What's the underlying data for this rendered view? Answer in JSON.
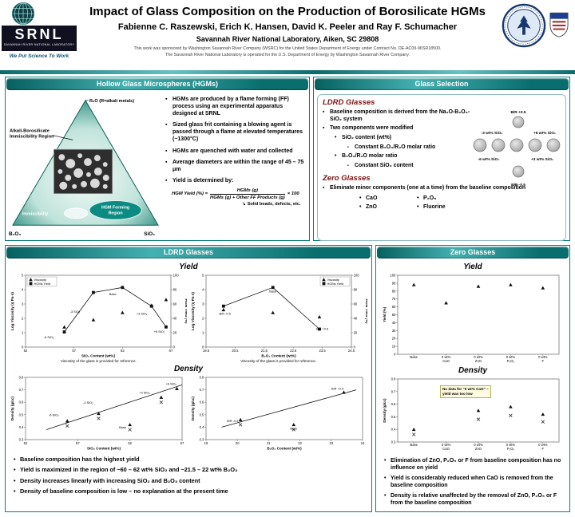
{
  "header": {
    "title": "Impact of Glass Composition on the Production of Borosilicate HGMs",
    "authors": "Fabienne C. Raszewski, Erich K. Hansen, David K. Peeler and Ray F. Schumacher",
    "affiliation": "Savannah River National Laboratory, Aiken, SC 29808",
    "sponsor_line1": "This work was sponsored by Washington Savannah River Company (WSRC) for the United States Department of Energy under Contract No. DE-AC09-96SR18500.",
    "sponsor_line2": "The Savannah River National Laboratory is operated for the U.S. Department of Energy by Washington Savannah River Company.",
    "logo": {
      "name": "SRNL",
      "sub": "SAVANNAH RIVER NATIONAL LABORATORY",
      "tagline": "We Put Science To Work"
    }
  },
  "icons": {
    "arrow": "↘"
  },
  "colors": {
    "teal_dark": "#076060",
    "teal_light": "#45b0b0",
    "heading_red": "#7a1212",
    "hgm_region_fill": "#0b8b82"
  },
  "hgm_panel": {
    "title": "Hollow Glass Microspheres (HGMs)",
    "diagram": {
      "apex_label": "R₂O (R=alkali metals)",
      "region_label_line1": "Alkali-Borosilicate",
      "region_label_line2": "Immiscibility Region",
      "immiscibility_label": "Immiscibility",
      "hgm_region_line1": "HGM Forming",
      "hgm_region_line2": "Region",
      "corner_left": "B₂O₃",
      "corner_right": "SiO₂"
    },
    "bullets": [
      "HGMs are produced by a flame forming (FF) process using an experimental apparatus designed at SRNL",
      "Sized glass frit containing a blowing agent is passed through a flame at elevated temperatures (~1300°C)",
      "HGMs are quenched with water and collected",
      "Average diameters are within the range of 45 – 75 μm",
      "Yield is determined by:"
    ],
    "formula": {
      "lhs": "HGM Yield (%) =",
      "numerator": "HGMs (g)",
      "denominator": "HGMs (g) + Other FF Products (g)",
      "multiplier": "× 100",
      "note": "Solid beads, defects, etc."
    }
  },
  "glass_selection_panel": {
    "title": "Glass Selection",
    "ldrd": {
      "heading": "LDRD Glasses",
      "bullet1": "Baseline composition is derived from the Na₂O-B₂O₃-SiO₂ system",
      "bullet2": "Two components were modified",
      "sub1": "SiO₂ content (wt%)",
      "sub1a": "Constant B₂O₃/R₂O molar ratio",
      "sub2": "B₂O₃/R₂O molar ratio",
      "sub2a": "Constant SiO₂ content",
      "samples": {
        "top": "B/R +0.5",
        "mid_left_top": "-3 wt% SiO₂",
        "mid_right_top": "+6 wt% SiO₂",
        "mid_left_bottom": "-6 wt% SiO₂",
        "mid_right_bottom": "+3 wt% SiO₂",
        "bottom": "B/R -0.5"
      }
    },
    "zero": {
      "heading": "Zero Glasses",
      "bullet1": "Eliminate minor components (one at a time) from the baseline composition",
      "items": [
        "CaO",
        "P₂O₅",
        "ZnO",
        "Fluorine"
      ]
    }
  },
  "ldrd_panel": {
    "title": "LDRD Glasses",
    "yield_heading": "Yield",
    "density_heading": "Density",
    "bullets": [
      "Baseline composition has the highest yield",
      "Yield is maximized in the region of ~60 – 62 wt% SiO₂ and ~21.5 – 22 wt% B₂O₃",
      "Density increases linearly with increasing SiO₂ and B₂O₃ content",
      "Density of baseline composition is low – no explanation at the present time"
    ]
  },
  "zero_panel": {
    "title": "Zero Glasses",
    "yield_heading": "Yield",
    "density_heading": "Density",
    "bullets": [
      "Elimination of ZnO, P₂O₅ or F from baseline composition has no influence on yield",
      "Yield is considerably reduced when CaO is removed from the baseline composition",
      "Density is relative unaffected by the removal of ZnO, P₂O₅ or F from the baseline composition"
    ]
  },
  "chart_data": [
    {
      "type": "scatter",
      "xlabel": "SiO₂ Content (wt%)",
      "ylabel": "Log Viscosity (η Pa·s)",
      "y2label": "HGM Yield (%)",
      "xlim": [
        52,
        67
      ],
      "xticks": [
        52,
        57,
        62,
        67
      ],
      "ylim": [
        0,
        5
      ],
      "yticks": [
        0,
        1,
        2,
        3,
        4,
        5
      ],
      "y2lim": [
        0,
        100
      ],
      "y2ticks": [
        0,
        20,
        40,
        60,
        80,
        100
      ],
      "legend": [
        "Viscosity",
        "HGMs Yield"
      ],
      "legend_pos": "tl",
      "series": [
        {
          "name": "Viscosity",
          "marker": "triangle",
          "axis": "y",
          "points": [
            [
              56,
              1.4
            ],
            [
              59,
              1.9
            ],
            [
              62,
              2.4
            ],
            [
              65,
              2.9
            ],
            [
              66.5,
              3.3
            ]
          ]
        },
        {
          "name": "HGMs Yield",
          "marker": "square",
          "axis": "y2",
          "line": true,
          "points": [
            [
              56,
              21
            ],
            [
              59,
              76
            ],
            [
              62,
              83
            ],
            [
              65,
              57
            ],
            [
              66.5,
              28
            ]
          ]
        }
      ],
      "annotations": [
        {
          "fx": 0.16,
          "fy": 0.88,
          "text": "-6 SiO₂"
        },
        {
          "fx": 0.34,
          "fy": 0.52,
          "text": "-3 SiO₂"
        },
        {
          "fx": 0.6,
          "fy": 0.28,
          "text": "Base"
        },
        {
          "fx": 0.8,
          "fy": 0.55,
          "text": "+3 SiO₂"
        },
        {
          "fx": 0.92,
          "fy": 0.8,
          "text": "+6 SiO₂"
        }
      ],
      "caption": "Viscosity of the glass is provided for reference."
    },
    {
      "type": "scatter",
      "xlabel": "B₂O₃ Content (wt%)",
      "ylabel": "Log Viscosity (η Pa·s)",
      "y2label": "HGM Yield (%)",
      "xlim": [
        19.5,
        24.5
      ],
      "xticks": [
        19.5,
        20.5,
        21.5,
        22.5,
        23.5,
        24.5
      ],
      "ylim": [
        0,
        5
      ],
      "yticks": [
        0,
        1,
        2,
        3,
        4,
        5
      ],
      "y2lim": [
        0,
        100
      ],
      "y2ticks": [
        0,
        20,
        40,
        60,
        80,
        100
      ],
      "legend": [
        "Viscosity",
        "HGMs Yield"
      ],
      "legend_pos": "tr",
      "series": [
        {
          "name": "Viscosity",
          "marker": "triangle",
          "axis": "y",
          "points": [
            [
              20.1,
              2.6
            ],
            [
              21.8,
              2.4
            ],
            [
              23.4,
              2.1
            ]
          ]
        },
        {
          "name": "HGMs Yield",
          "marker": "square",
          "axis": "y2",
          "line": true,
          "points": [
            [
              20.1,
              57
            ],
            [
              21.8,
              83
            ],
            [
              23.4,
              25
            ]
          ]
        }
      ],
      "annotations": [
        {
          "fx": 0.13,
          "fy": 0.55,
          "text": "B/R -0.5"
        },
        {
          "fx": 0.46,
          "fy": 0.24,
          "text": "Base"
        },
        {
          "fx": 0.8,
          "fy": 0.76,
          "text": "B/R +0.5"
        }
      ],
      "caption": "Viscosity of the glass is provided for reference."
    },
    {
      "type": "scatter",
      "xlabel": "SiO₂ Content (wt%)",
      "ylabel": "Density (g/cc)",
      "xlim": [
        52,
        67
      ],
      "xticks": [
        52,
        57,
        62,
        67
      ],
      "ylim": [
        0.3,
        0.8
      ],
      "yticks": [
        0.3,
        0.4,
        0.5,
        0.6,
        0.7,
        0.8
      ],
      "series": [
        {
          "name": "trend",
          "marker": "none",
          "line": true,
          "points": [
            [
              54,
              0.38
            ],
            [
              67,
              0.74
            ]
          ]
        },
        {
          "name": "Density",
          "marker": "triangle",
          "points": [
            [
              56,
              0.45
            ],
            [
              59,
              0.51
            ],
            [
              62,
              0.42
            ],
            [
              65,
              0.64
            ],
            [
              66.5,
              0.71
            ]
          ]
        },
        {
          "name": "Density (repeat)",
          "marker": "x",
          "points": [
            [
              56,
              0.41
            ],
            [
              59,
              0.47
            ],
            [
              62,
              0.38
            ],
            [
              65,
              0.6
            ]
          ]
        }
      ],
      "annotations": [
        {
          "fx": 0.18,
          "fy": 0.62,
          "text": "-6 SiO₂"
        },
        {
          "fx": 0.4,
          "fy": 0.42,
          "text": "-3 SiO₂"
        },
        {
          "fx": 0.62,
          "fy": 0.82,
          "text": "Base"
        },
        {
          "fx": 0.76,
          "fy": 0.26,
          "text": "+3 SiO₂"
        },
        {
          "fx": 0.93,
          "fy": 0.12,
          "text": "+6 SiO₂"
        }
      ]
    },
    {
      "type": "scatter",
      "xlabel": "B₂O₃ Content (wt%)",
      "ylabel": "Density (g/cc)",
      "xlim": [
        19,
        24
      ],
      "xticks": [
        19,
        20,
        21,
        22,
        23,
        24
      ],
      "ylim": [
        0.3,
        0.8
      ],
      "yticks": [
        0.3,
        0.4,
        0.5,
        0.6,
        0.7,
        0.8
      ],
      "series": [
        {
          "name": "trend",
          "marker": "none",
          "line": true,
          "points": [
            [
              19.5,
              0.4
            ],
            [
              23.8,
              0.7
            ]
          ]
        },
        {
          "name": "Density",
          "marker": "triangle",
          "points": [
            [
              20.1,
              0.46
            ],
            [
              21.8,
              0.42
            ],
            [
              23.4,
              0.68
            ]
          ]
        },
        {
          "name": "Density (repeat)",
          "marker": "x",
          "points": [
            [
              20.1,
              0.42
            ],
            [
              21.8,
              0.38
            ]
          ]
        }
      ],
      "annotations": [
        {
          "fx": 0.17,
          "fy": 0.72,
          "text": "B/R -0.5"
        },
        {
          "fx": 0.56,
          "fy": 0.84,
          "text": "Base"
        },
        {
          "fx": 0.84,
          "fy": 0.2,
          "text": "B/R +0.5"
        }
      ]
    },
    {
      "type": "scatter",
      "ylabel": "Yield (%)",
      "categories": [
        "Base",
        "0 wt% CaO",
        "0 wt% ZnO",
        "0 wt% P₂O₅",
        "0 wt% F"
      ],
      "ylim": [
        0,
        100
      ],
      "yticks": [
        0,
        10,
        20,
        30,
        40,
        50,
        60,
        70,
        80,
        90,
        100
      ],
      "series": [
        {
          "name": "Yield",
          "marker": "triangle",
          "points": [
            [
              0,
              88
            ],
            [
              1,
              65
            ],
            [
              2,
              86
            ],
            [
              3,
              88
            ],
            [
              4,
              84
            ]
          ]
        }
      ]
    },
    {
      "type": "scatter",
      "ylabel": "Density (g/cc)",
      "categories": [
        "Base",
        "0 wt% CaO",
        "0 wt% ZnO",
        "0 wt% P₂O₅",
        "0 wt% F"
      ],
      "ylim": [
        0.3,
        0.8
      ],
      "yticks": [
        0.3,
        0.4,
        0.5,
        0.6,
        0.7,
        0.8
      ],
      "series": [
        {
          "name": "Density",
          "marker": "triangle",
          "points": [
            [
              0,
              0.4
            ],
            [
              2,
              0.55
            ],
            [
              3,
              0.58
            ],
            [
              4,
              0.52
            ]
          ]
        },
        {
          "name": "Density (repeat)",
          "marker": "x",
          "points": [
            [
              0,
              0.36
            ],
            [
              2,
              0.48
            ],
            [
              3,
              0.51
            ],
            [
              4,
              0.46
            ]
          ]
        }
      ],
      "note": "No data for “0 wt% CaO” – yield was too low"
    }
  ]
}
